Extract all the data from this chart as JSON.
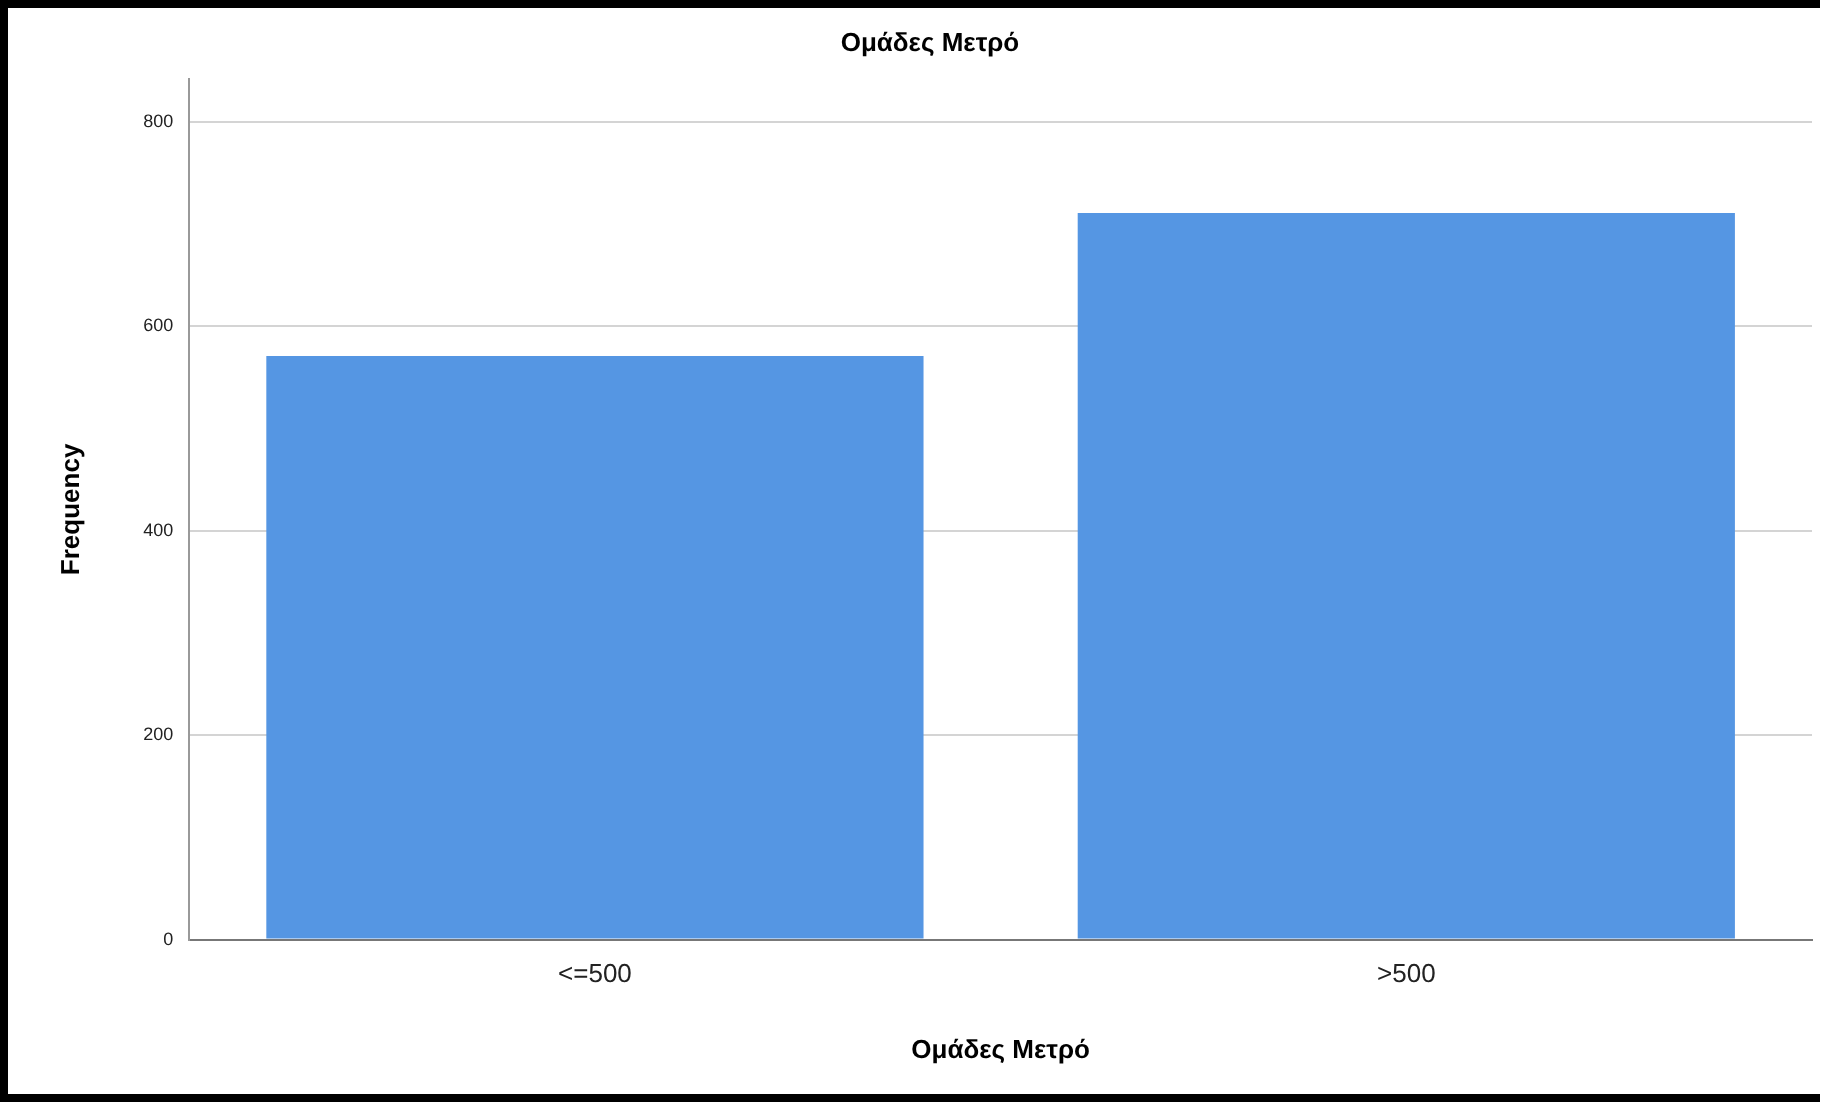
{
  "chart_data": {
    "type": "bar",
    "title": "Ομάδες Μετρό",
    "xlabel": "Ομάδες Μετρό",
    "ylabel": "Frequency",
    "categories": [
      "<=500",
      ">500"
    ],
    "values": [
      571,
      711
    ],
    "color": "#5596e3",
    "ylim": [
      0,
      842
    ],
    "yticks": [
      0,
      200,
      400,
      600,
      800
    ],
    "grid": "y"
  }
}
